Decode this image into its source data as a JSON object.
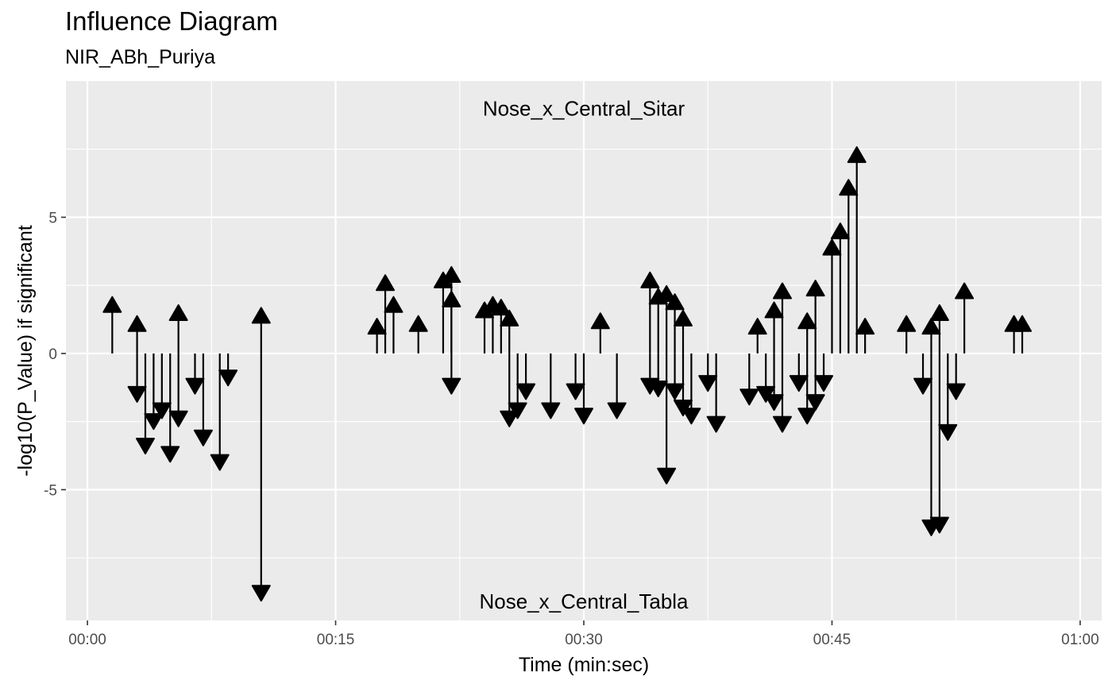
{
  "chart_data": {
    "type": "arrow",
    "title": "Influence Diagram",
    "subtitle": "NIR_ABh_Puriya",
    "xlabel": "Time (min:sec)",
    "ylabel": "-log10(P_Value) if significant",
    "xlim": [
      -1.3,
      61.3
    ],
    "ylim": [
      -9.8,
      10
    ],
    "x_ticks": [
      {
        "value": 0,
        "label": "00:00"
      },
      {
        "value": 15,
        "label": "00:15"
      },
      {
        "value": 30,
        "label": "00:30"
      },
      {
        "value": 45,
        "label": "00:45"
      },
      {
        "value": 60,
        "label": "01:00"
      }
    ],
    "y_ticks": [
      {
        "value": -5,
        "label": "-5"
      },
      {
        "value": 0,
        "label": "0"
      },
      {
        "value": 5,
        "label": "5"
      }
    ],
    "grid": true,
    "annotations": [
      {
        "text": "Nose_x_Central_Sitar",
        "x": 30,
        "y": 9.0
      },
      {
        "text": "Nose_x_Central_Tabla",
        "x": 30,
        "y": -9.1
      }
    ],
    "arrows": [
      {
        "t": 1.5,
        "v": 1.8
      },
      {
        "t": 3.0,
        "v": 1.1
      },
      {
        "t": 3.0,
        "v": -1.5
      },
      {
        "t": 3.5,
        "v": -3.4
      },
      {
        "t": 4.0,
        "v": -2.5
      },
      {
        "t": 4.5,
        "v": -2.1
      },
      {
        "t": 5.0,
        "v": -3.7
      },
      {
        "t": 5.5,
        "v": 1.5
      },
      {
        "t": 5.5,
        "v": -2.4
      },
      {
        "t": 6.5,
        "v": -1.2
      },
      {
        "t": 7.0,
        "v": -3.1
      },
      {
        "t": 8.0,
        "v": -4.0
      },
      {
        "t": 8.5,
        "v": -0.9
      },
      {
        "t": 10.5,
        "v": 1.4
      },
      {
        "t": 10.5,
        "v": -8.8
      },
      {
        "t": 17.5,
        "v": 1.0
      },
      {
        "t": 18.0,
        "v": 2.6
      },
      {
        "t": 18.5,
        "v": 1.8
      },
      {
        "t": 20.0,
        "v": 1.1
      },
      {
        "t": 21.5,
        "v": 2.7
      },
      {
        "t": 22.0,
        "v": 2.9
      },
      {
        "t": 22.0,
        "v": -1.2
      },
      {
        "t": 22.0,
        "v": 2.0
      },
      {
        "t": 24.0,
        "v": 1.6
      },
      {
        "t": 24.5,
        "v": 1.8
      },
      {
        "t": 25.0,
        "v": 1.7
      },
      {
        "t": 25.5,
        "v": 1.3
      },
      {
        "t": 25.5,
        "v": -2.4
      },
      {
        "t": 26.0,
        "v": -2.1
      },
      {
        "t": 26.5,
        "v": -1.4
      },
      {
        "t": 28.0,
        "v": -2.1
      },
      {
        "t": 29.5,
        "v": -1.4
      },
      {
        "t": 30.0,
        "v": -2.3
      },
      {
        "t": 31.0,
        "v": 1.2
      },
      {
        "t": 32.0,
        "v": -2.1
      },
      {
        "t": 34.0,
        "v": 2.7
      },
      {
        "t": 34.0,
        "v": -1.2
      },
      {
        "t": 34.5,
        "v": 2.1
      },
      {
        "t": 34.5,
        "v": -1.3
      },
      {
        "t": 35.0,
        "v": 2.2
      },
      {
        "t": 35.0,
        "v": -4.5
      },
      {
        "t": 35.5,
        "v": 1.9
      },
      {
        "t": 35.5,
        "v": -1.4
      },
      {
        "t": 36.0,
        "v": 1.3
      },
      {
        "t": 36.0,
        "v": -2.0
      },
      {
        "t": 36.5,
        "v": -2.3
      },
      {
        "t": 37.5,
        "v": -1.1
      },
      {
        "t": 38.0,
        "v": -2.6
      },
      {
        "t": 40.0,
        "v": -1.6
      },
      {
        "t": 40.5,
        "v": 1.0
      },
      {
        "t": 41.0,
        "v": -1.5
      },
      {
        "t": 41.5,
        "v": 1.6
      },
      {
        "t": 41.5,
        "v": -1.8
      },
      {
        "t": 42.0,
        "v": 2.3
      },
      {
        "t": 42.0,
        "v": -2.6
      },
      {
        "t": 43.0,
        "v": -1.1
      },
      {
        "t": 43.5,
        "v": 1.2
      },
      {
        "t": 43.5,
        "v": -2.3
      },
      {
        "t": 44.0,
        "v": 2.4
      },
      {
        "t": 44.0,
        "v": -1.8
      },
      {
        "t": 44.5,
        "v": -1.1
      },
      {
        "t": 45.0,
        "v": 3.9
      },
      {
        "t": 45.5,
        "v": 4.5
      },
      {
        "t": 46.0,
        "v": 6.1
      },
      {
        "t": 46.5,
        "v": 7.3
      },
      {
        "t": 47.0,
        "v": 1.0
      },
      {
        "t": 49.5,
        "v": 1.1
      },
      {
        "t": 50.5,
        "v": -1.2
      },
      {
        "t": 51.0,
        "v": 1.0
      },
      {
        "t": 51.0,
        "v": -6.4
      },
      {
        "t": 51.5,
        "v": 1.5
      },
      {
        "t": 51.5,
        "v": -6.3
      },
      {
        "t": 52.0,
        "v": -2.9
      },
      {
        "t": 52.5,
        "v": -1.4
      },
      {
        "t": 53.0,
        "v": 2.3
      },
      {
        "t": 56.0,
        "v": 1.1
      },
      {
        "t": 56.5,
        "v": 1.1
      }
    ]
  }
}
